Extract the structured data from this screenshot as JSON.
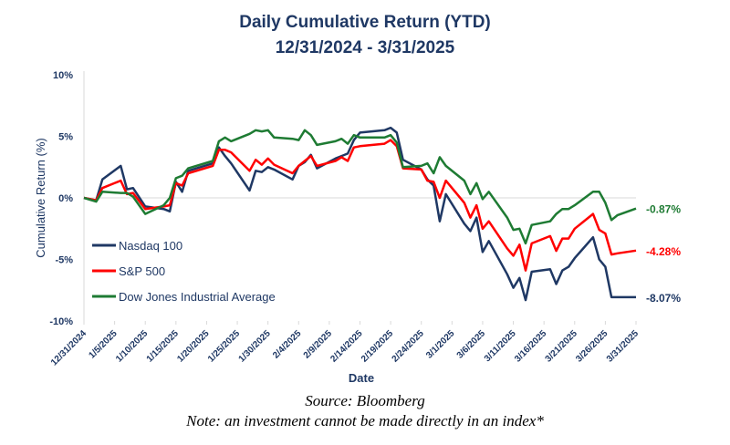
{
  "chart_data": {
    "type": "line",
    "title": "Daily Cumulative  Return (YTD)",
    "subtitle": "12/31/2024 - 3/31/2025",
    "xlabel": "Date",
    "ylabel": "Cumulative Return (%)",
    "ylim": [
      -10,
      10
    ],
    "yticks": [
      "10%",
      "5%",
      "0%",
      "-5%",
      "-10%"
    ],
    "xticks": [
      "12/31/2024",
      "1/5/2025",
      "1/10/2025",
      "1/15/2025",
      "1/20/2025",
      "1/25/2025",
      "1/30/2025",
      "2/4/2025",
      "2/9/2025",
      "2/14/2025",
      "2/19/2025",
      "2/24/2025",
      "3/1/2025",
      "3/6/2025",
      "3/11/2025",
      "3/16/2025",
      "3/21/2025",
      "3/26/2025",
      "3/31/2025"
    ],
    "x": [
      "12/31/2024",
      "1/2/2025",
      "1/3/2025",
      "1/6/2025",
      "1/7/2025",
      "1/8/2025",
      "1/10/2025",
      "1/13/2025",
      "1/14/2025",
      "1/15/2025",
      "1/16/2025",
      "1/17/2025",
      "1/21/2025",
      "1/22/2025",
      "1/23/2025",
      "1/24/2025",
      "1/27/2025",
      "1/28/2025",
      "1/29/2025",
      "1/30/2025",
      "1/31/2025",
      "2/3/2025",
      "2/4/2025",
      "2/5/2025",
      "2/6/2025",
      "2/7/2025",
      "2/10/2025",
      "2/11/2025",
      "2/12/2025",
      "2/13/2025",
      "2/14/2025",
      "2/18/2025",
      "2/19/2025",
      "2/20/2025",
      "2/21/2025",
      "2/24/2025",
      "2/25/2025",
      "2/26/2025",
      "2/27/2025",
      "2/28/2025",
      "3/3/2025",
      "3/4/2025",
      "3/5/2025",
      "3/6/2025",
      "3/7/2025",
      "3/10/2025",
      "3/11/2025",
      "3/12/2025",
      "3/13/2025",
      "3/14/2025",
      "3/17/2025",
      "3/18/2025",
      "3/19/2025",
      "3/20/2025",
      "3/21/2025",
      "3/24/2025",
      "3/25/2025",
      "3/26/2025",
      "3/27/2025",
      "3/28/2025",
      "3/31/2025"
    ],
    "series": [
      {
        "name": "Nasdaq 100",
        "color": "#1f3864",
        "end_label": "-8.07%",
        "values": [
          0,
          -0.2,
          1.5,
          2.6,
          0.7,
          0.8,
          -0.7,
          -0.9,
          -1.1,
          1.3,
          0.5,
          2.2,
          2.8,
          4.1,
          3.4,
          2.8,
          0.6,
          2.2,
          2.1,
          2.5,
          2.3,
          1.5,
          2.6,
          2.9,
          3.5,
          2.4,
          3.2,
          3.4,
          3.6,
          4.7,
          5.3,
          5.5,
          5.7,
          5.3,
          3.1,
          2.3,
          1.5,
          1.0,
          -1.9,
          0.3,
          -2.1,
          -2.7,
          -1.6,
          -4.4,
          -3.5,
          -6.2,
          -7.3,
          -6.5,
          -8.3,
          -6.0,
          -5.8,
          -7.0,
          -5.9,
          -5.6,
          -4.9,
          -3.2,
          -5.0,
          -5.6,
          -8.07,
          -8.07,
          -8.07
        ]
      },
      {
        "name": "S&P 500",
        "color": "#ff0000",
        "end_label": "-4.28%",
        "values": [
          0,
          -0.2,
          0.8,
          1.4,
          0.3,
          0.4,
          -0.9,
          -0.7,
          -0.6,
          1.2,
          1.0,
          2.0,
          2.6,
          3.9,
          3.9,
          3.7,
          2.2,
          3.1,
          2.7,
          3.2,
          2.7,
          2.0,
          2.6,
          3.0,
          3.4,
          2.6,
          3.0,
          3.3,
          3.0,
          4.1,
          4.2,
          4.4,
          4.7,
          4.2,
          2.4,
          2.3,
          1.4,
          1.3,
          0.0,
          1.4,
          -0.4,
          -1.6,
          -0.6,
          -2.5,
          -1.9,
          -4.1,
          -4.7,
          -3.8,
          -5.9,
          -3.7,
          -3.1,
          -4.3,
          -3.3,
          -3.3,
          -2.5,
          -1.3,
          -2.6,
          -2.9,
          -4.6,
          -4.5,
          -4.28
        ]
      },
      {
        "name": "Dow Jones Industrial Average",
        "color": "#1e7b33",
        "end_label": "-0.87%",
        "values": [
          0,
          -0.3,
          0.5,
          0.4,
          0.4,
          0.1,
          -1.3,
          -0.6,
          0.0,
          1.6,
          1.8,
          2.4,
          3.0,
          4.6,
          4.9,
          4.6,
          5.2,
          5.5,
          5.4,
          5.5,
          4.9,
          4.8,
          4.7,
          5.5,
          5.1,
          4.3,
          4.6,
          4.8,
          4.4,
          5.1,
          4.9,
          4.9,
          5.1,
          4.5,
          2.5,
          2.6,
          2.8,
          2.0,
          3.3,
          2.6,
          1.4,
          0.3,
          1.2,
          -0.1,
          0.5,
          -1.6,
          -2.6,
          -2.5,
          -3.7,
          -2.2,
          -1.9,
          -1.3,
          -0.9,
          -0.9,
          -0.6,
          0.5,
          0.5,
          -0.4,
          -1.8,
          -1.4,
          -0.87
        ]
      }
    ],
    "legend": "lower-left",
    "grid": false
  },
  "footer": {
    "source": "Source: Bloomberg",
    "note": "Note: an investment cannot be made directly in an index*"
  }
}
